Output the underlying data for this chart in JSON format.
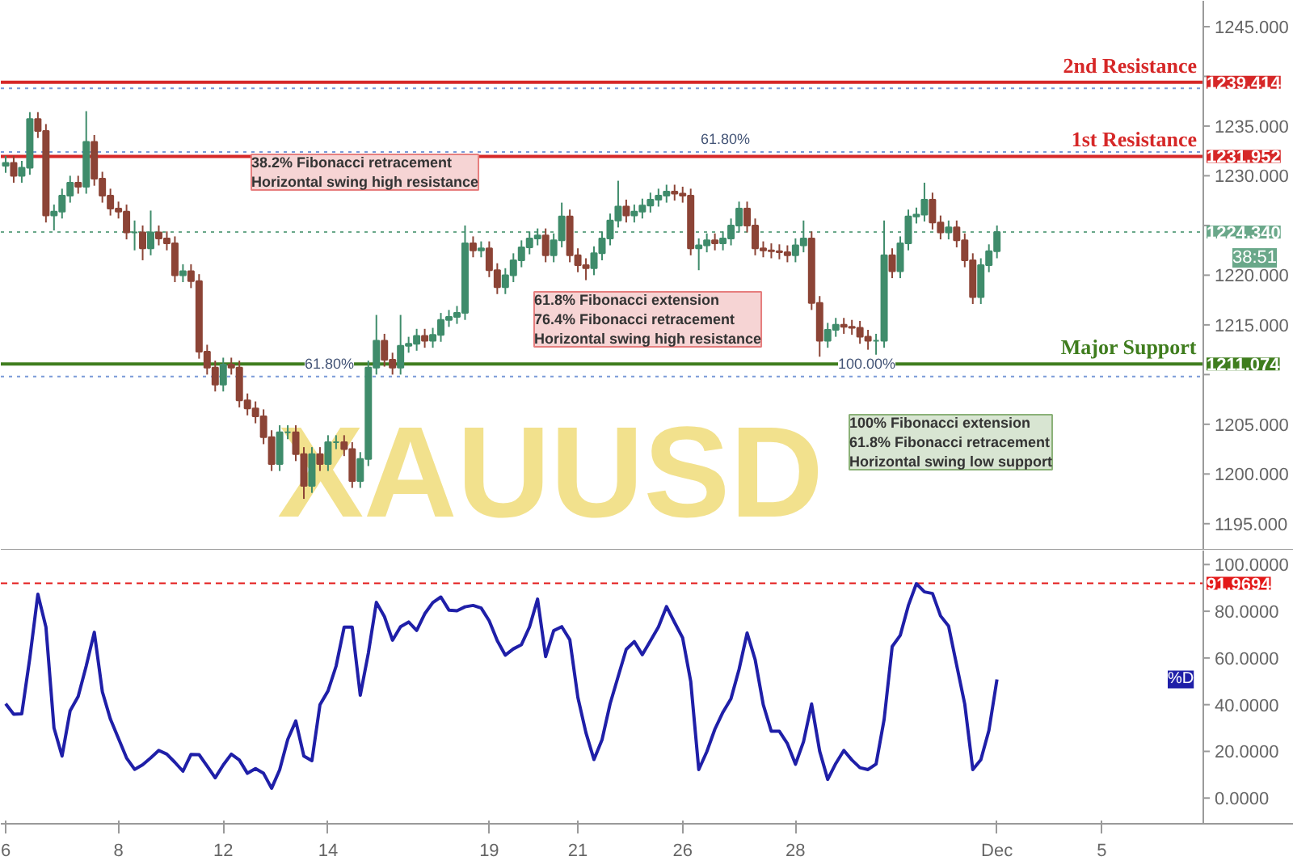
{
  "chart_data": [
    {
      "type": "candlestick",
      "ohlc": [
        [
          1231.0,
          1232.0,
          1230.3,
          1231.3
        ],
        [
          1231.3,
          1232.0,
          1229.3,
          1230.0
        ],
        [
          1230.0,
          1231.5,
          1229.3,
          1230.8
        ],
        [
          1230.8,
          1236.4,
          1230.1,
          1235.7
        ],
        [
          1235.7,
          1236.4,
          1233.8,
          1234.5
        ],
        [
          1234.5,
          1235.2,
          1225.3,
          1226.0
        ],
        [
          1226.0,
          1227.1,
          1224.5,
          1226.4
        ],
        [
          1226.4,
          1228.7,
          1225.7,
          1228.0
        ],
        [
          1228.0,
          1230.0,
          1227.3,
          1229.3
        ],
        [
          1229.3,
          1230.0,
          1228.2,
          1228.9
        ],
        [
          1228.9,
          1236.5,
          1228.2,
          1233.4
        ],
        [
          1233.4,
          1234.1,
          1229.0,
          1229.7
        ],
        [
          1229.7,
          1230.4,
          1227.3,
          1228.0
        ],
        [
          1228.0,
          1228.7,
          1226.0,
          1226.7
        ],
        [
          1226.7,
          1227.4,
          1225.7,
          1226.4
        ],
        [
          1226.4,
          1227.1,
          1223.6,
          1224.3
        ],
        [
          1224.3,
          1225.5,
          1222.5,
          1224.3
        ],
        [
          1224.3,
          1225.0,
          1221.5,
          1222.7
        ],
        [
          1222.7,
          1226.5,
          1222.0,
          1224.3
        ],
        [
          1224.3,
          1225.0,
          1223.0,
          1223.7
        ],
        [
          1223.7,
          1224.4,
          1222.5,
          1223.2
        ],
        [
          1223.2,
          1223.9,
          1219.3,
          1220.0
        ],
        [
          1220.0,
          1221.1,
          1219.3,
          1220.4
        ],
        [
          1220.4,
          1221.1,
          1218.7,
          1219.4
        ],
        [
          1219.4,
          1220.1,
          1211.6,
          1212.3
        ],
        [
          1212.3,
          1213.0,
          1210.0,
          1210.7
        ],
        [
          1210.7,
          1211.4,
          1208.3,
          1209.0
        ],
        [
          1209.0,
          1211.7,
          1208.3,
          1211.0
        ],
        [
          1211.0,
          1211.7,
          1210.0,
          1210.7
        ],
        [
          1210.7,
          1211.4,
          1206.7,
          1207.4
        ],
        [
          1207.4,
          1208.1,
          1205.9,
          1206.6
        ],
        [
          1206.6,
          1207.3,
          1205.1,
          1205.8
        ],
        [
          1205.8,
          1206.5,
          1203.0,
          1203.7
        ],
        [
          1203.7,
          1204.4,
          1200.3,
          1201.0
        ],
        [
          1201.0,
          1204.9,
          1200.3,
          1204.2
        ],
        [
          1204.2,
          1204.9,
          1203.5,
          1204.2
        ],
        [
          1204.2,
          1204.9,
          1201.3,
          1202.0
        ],
        [
          1202.0,
          1202.7,
          1197.5,
          1198.8
        ],
        [
          1198.8,
          1202.7,
          1198.1,
          1202.0
        ],
        [
          1202.0,
          1202.7,
          1200.3,
          1201.0
        ],
        [
          1201.0,
          1203.9,
          1200.3,
          1203.2
        ],
        [
          1203.2,
          1203.9,
          1202.5,
          1203.2
        ],
        [
          1203.2,
          1203.9,
          1201.8,
          1202.5
        ],
        [
          1202.5,
          1203.2,
          1198.6,
          1199.3
        ],
        [
          1199.3,
          1202.2,
          1198.6,
          1201.5
        ],
        [
          1201.5,
          1211.4,
          1200.8,
          1210.7
        ],
        [
          1210.7,
          1216.0,
          1210.0,
          1213.4
        ],
        [
          1213.4,
          1214.1,
          1210.8,
          1211.5
        ],
        [
          1211.5,
          1212.2,
          1210.0,
          1210.7
        ],
        [
          1210.7,
          1216.0,
          1210.0,
          1212.9
        ],
        [
          1212.9,
          1213.8,
          1212.2,
          1213.1
        ],
        [
          1213.1,
          1214.6,
          1212.4,
          1213.9
        ],
        [
          1213.9,
          1214.6,
          1212.7,
          1213.4
        ],
        [
          1213.4,
          1214.7,
          1212.7,
          1214.0
        ],
        [
          1214.0,
          1216.2,
          1213.3,
          1215.5
        ],
        [
          1215.5,
          1216.5,
          1214.8,
          1215.8
        ],
        [
          1215.8,
          1216.9,
          1215.1,
          1216.2
        ],
        [
          1216.2,
          1225.0,
          1215.5,
          1223.2
        ],
        [
          1223.2,
          1223.9,
          1221.8,
          1222.5
        ],
        [
          1222.5,
          1223.4,
          1221.8,
          1222.7
        ],
        [
          1222.7,
          1223.4,
          1219.8,
          1220.5
        ],
        [
          1220.5,
          1221.2,
          1218.1,
          1218.8
        ],
        [
          1218.8,
          1220.7,
          1218.1,
          1220.0
        ],
        [
          1220.0,
          1222.2,
          1219.3,
          1221.5
        ],
        [
          1221.5,
          1223.5,
          1220.8,
          1222.8
        ],
        [
          1222.8,
          1224.4,
          1222.1,
          1223.7
        ],
        [
          1223.7,
          1224.7,
          1223.0,
          1224.0
        ],
        [
          1224.0,
          1224.7,
          1221.3,
          1222.0
        ],
        [
          1222.0,
          1224.2,
          1221.3,
          1223.5
        ],
        [
          1223.5,
          1227.3,
          1222.8,
          1225.9
        ],
        [
          1225.9,
          1226.6,
          1221.3,
          1222.0
        ],
        [
          1222.0,
          1222.7,
          1220.3,
          1221.0
        ],
        [
          1221.0,
          1221.7,
          1219.5,
          1220.7
        ],
        [
          1220.7,
          1222.9,
          1220.0,
          1222.2
        ],
        [
          1222.2,
          1224.4,
          1221.5,
          1223.7
        ],
        [
          1223.7,
          1226.2,
          1223.0,
          1225.5
        ],
        [
          1225.5,
          1229.5,
          1224.8,
          1226.9
        ],
        [
          1226.9,
          1227.6,
          1225.3,
          1226.0
        ],
        [
          1226.0,
          1227.1,
          1225.3,
          1226.4
        ],
        [
          1226.4,
          1227.7,
          1225.7,
          1227.0
        ],
        [
          1227.0,
          1228.3,
          1226.3,
          1227.6
        ],
        [
          1227.6,
          1228.7,
          1226.9,
          1228.0
        ],
        [
          1228.0,
          1229.1,
          1227.3,
          1228.4
        ],
        [
          1228.4,
          1229.1,
          1227.5,
          1228.2
        ],
        [
          1228.2,
          1228.9,
          1227.3,
          1228.0
        ],
        [
          1228.0,
          1228.7,
          1222.0,
          1222.7
        ],
        [
          1222.7,
          1223.7,
          1220.5,
          1223.0
        ],
        [
          1223.0,
          1224.2,
          1222.3,
          1223.5
        ],
        [
          1223.5,
          1224.2,
          1222.5,
          1223.2
        ],
        [
          1223.2,
          1224.4,
          1222.5,
          1223.7
        ],
        [
          1223.7,
          1225.7,
          1223.0,
          1225.0
        ],
        [
          1225.0,
          1227.4,
          1224.3,
          1226.7
        ],
        [
          1226.7,
          1227.4,
          1224.3,
          1225.0
        ],
        [
          1225.0,
          1225.7,
          1222.0,
          1222.7
        ],
        [
          1222.7,
          1223.4,
          1221.8,
          1222.5
        ],
        [
          1222.5,
          1223.2,
          1221.7,
          1222.4
        ],
        [
          1222.4,
          1223.1,
          1221.6,
          1222.3
        ],
        [
          1222.3,
          1223.0,
          1221.3,
          1222.0
        ],
        [
          1222.0,
          1223.7,
          1221.3,
          1223.0
        ],
        [
          1223.0,
          1225.5,
          1222.3,
          1223.7
        ],
        [
          1223.7,
          1224.4,
          1216.5,
          1217.2
        ],
        [
          1217.2,
          1217.9,
          1211.8,
          1213.4
        ],
        [
          1213.4,
          1215.2,
          1212.7,
          1214.5
        ],
        [
          1214.5,
          1215.7,
          1213.8,
          1215.0
        ],
        [
          1215.0,
          1215.7,
          1214.1,
          1214.8
        ],
        [
          1214.8,
          1215.5,
          1214.0,
          1214.7
        ],
        [
          1214.7,
          1215.4,
          1213.1,
          1213.8
        ],
        [
          1213.8,
          1214.5,
          1212.5,
          1213.4
        ],
        [
          1213.4,
          1214.1,
          1212.0,
          1213.4
        ],
        [
          1213.4,
          1225.5,
          1212.7,
          1222.0
        ],
        [
          1222.0,
          1222.7,
          1219.7,
          1220.4
        ],
        [
          1220.4,
          1223.9,
          1219.7,
          1223.2
        ],
        [
          1223.2,
          1226.6,
          1222.5,
          1225.9
        ],
        [
          1225.9,
          1226.8,
          1225.2,
          1226.1
        ],
        [
          1226.1,
          1229.3,
          1225.4,
          1227.6
        ],
        [
          1227.6,
          1228.3,
          1224.6,
          1225.3
        ],
        [
          1225.3,
          1226.0,
          1223.6,
          1224.3
        ],
        [
          1224.3,
          1225.5,
          1223.6,
          1224.8
        ],
        [
          1224.8,
          1225.5,
          1222.8,
          1223.5
        ],
        [
          1223.5,
          1224.2,
          1220.8,
          1221.5
        ],
        [
          1221.5,
          1222.2,
          1217.1,
          1217.8
        ],
        [
          1217.8,
          1221.7,
          1217.1,
          1221.0
        ],
        [
          1221.0,
          1223.1,
          1220.3,
          1222.4
        ],
        [
          1222.4,
          1225.0,
          1221.7,
          1224.34
        ],
        null,
        null,
        null,
        null,
        null,
        null,
        null,
        null,
        null,
        null,
        null,
        null,
        null,
        null,
        null,
        null,
        null,
        null,
        null,
        null,
        null,
        null,
        null,
        null,
        null
      ],
      "colors": [
        "#3f8c6b",
        "#8c4436",
        "#3f8c6b",
        "#3f8c6b",
        "#8c4436",
        "#8c4436",
        "#3f8c6b",
        "#3f8c6b",
        "#3f8c6b",
        "#8c4436",
        "#3f8c6b",
        "#8c4436",
        "#8c4436",
        "#8c4436",
        "#8c4436",
        "#8c4436",
        "#3f8c6b",
        "#8c4436",
        "#3f8c6b",
        "#8c4436",
        "#8c4436",
        "#8c4436",
        "#3f8c6b",
        "#8c4436",
        "#8c4436",
        "#8c4436",
        "#8c4436",
        "#3f8c6b",
        "#8c4436",
        "#8c4436",
        "#8c4436",
        "#8c4436",
        "#8c4436",
        "#8c4436",
        "#3f8c6b",
        "#3f8c6b",
        "#8c4436",
        "#8c4436",
        "#3f8c6b",
        "#8c4436",
        "#3f8c6b",
        "#3f8c6b",
        "#8c4436",
        "#8c4436",
        "#3f8c6b",
        "#3f8c6b",
        "#3f8c6b",
        "#8c4436",
        "#8c4436",
        "#3f8c6b",
        "#3f8c6b",
        "#3f8c6b",
        "#8c4436",
        "#3f8c6b",
        "#3f8c6b",
        "#3f8c6b",
        "#3f8c6b",
        "#3f8c6b",
        "#8c4436",
        "#3f8c6b",
        "#8c4436",
        "#8c4436",
        "#3f8c6b",
        "#3f8c6b",
        "#3f8c6b",
        "#3f8c6b",
        "#3f8c6b",
        "#8c4436",
        "#3f8c6b",
        "#3f8c6b",
        "#8c4436",
        "#8c4436",
        "#8c4436",
        "#3f8c6b",
        "#3f8c6b",
        "#3f8c6b",
        "#3f8c6b",
        "#8c4436",
        "#3f8c6b",
        "#3f8c6b",
        "#3f8c6b",
        "#3f8c6b",
        "#3f8c6b",
        "#8c4436",
        "#8c4436",
        "#8c4436",
        "#3f8c6b",
        "#3f8c6b",
        "#8c4436",
        "#3f8c6b",
        "#3f8c6b",
        "#3f8c6b",
        "#8c4436",
        "#8c4436",
        "#8c4436",
        "#8c4436",
        "#8c4436",
        "#8c4436",
        "#3f8c6b",
        "#3f8c6b",
        "#8c4436",
        "#8c4436",
        "#3f8c6b",
        "#3f8c6b",
        "#8c4436",
        "#8c4436",
        "#8c4436",
        "#8c4436",
        "#3f8c6b",
        "#3f8c6b",
        "#8c4436",
        "#3f8c6b",
        "#3f8c6b",
        "#3f8c6b",
        "#3f8c6b",
        "#8c4436",
        "#8c4436",
        "#3f8c6b",
        "#8c4436",
        "#8c4436",
        "#8c4436",
        "#3f8c6b",
        "#3f8c6b",
        "#3f8c6b",
        null,
        null,
        null,
        null,
        null,
        null,
        null,
        null,
        null,
        null,
        null,
        null,
        null,
        null,
        null,
        null,
        null,
        null,
        null,
        null,
        null,
        null,
        null,
        null,
        null
      ],
      "ylim": [
        1192.3,
        1247.6
      ],
      "yticks": [
        {
          "value": 1195,
          "label": "1195.000"
        },
        {
          "value": 1200,
          "label": "1200.000"
        },
        {
          "value": 1205,
          "label": "1205.000"
        },
        {
          "value": 1210,
          "label": null
        },
        {
          "value": 1215,
          "label": "1215.000"
        },
        {
          "value": 1220,
          "label": "1220.000"
        },
        {
          "value": 1225,
          "label": null
        },
        {
          "value": 1230,
          "label": "1230.000"
        },
        {
          "value": 1235,
          "label": "1235.000"
        },
        {
          "value": 1240,
          "label": null
        },
        {
          "value": 1245,
          "label": "1245.000"
        }
      ],
      "tick_labels": "y",
      "ref_lines": [
        {
          "axis": "y",
          "value": 1239.414,
          "label": "1239.414",
          "color": "#d62828",
          "line_style": "solid"
        },
        {
          "axis": "y",
          "value": 1238.8,
          "color": "#7a9ad8",
          "line_style": "dotted"
        },
        {
          "axis": "y",
          "value": 1232.4,
          "color": "#7a9ad8",
          "line_style": "dotted"
        },
        {
          "axis": "y",
          "value": 1231.952,
          "label": "1231.952",
          "color": "#d62828",
          "line_style": "solid"
        },
        {
          "axis": "y",
          "value": 1224.34,
          "label": "1224.340",
          "color": "#6aa88a",
          "line_style": "dotted"
        },
        {
          "axis": "y",
          "value": 1211.074,
          "label": "1211.074",
          "color": "#3f7d1e",
          "line_style": "solid"
        },
        {
          "axis": "y",
          "value": 1209.8,
          "color": "#7a9ad8",
          "line_style": "dotted"
        }
      ],
      "annotations": [
        "XAUUSD",
        "38:51",
        "38.2% Fibonacci retracement\nHorizontal swing high resistance",
        "61.8% Fibonacci extension\n76.4% Fibonacci retracement\nHorizontal swing high resistance",
        "100% Fibonacci extension\n61.8% Fibonacci retracement\nHorizontal swing low support",
        {
          "text": "2nd Resistance",
          "y": 1239.414
        },
        {
          "text": "1st Resistance",
          "y": 1231.952
        },
        {
          "text": "Major Support",
          "y": 1211.074
        },
        {
          "text": "61.80%",
          "y": 1232.4
        },
        {
          "text": "61.80%",
          "y": 1209.8
        },
        {
          "text": "100.00%",
          "y": 1209.8
        }
      ]
    },
    {
      "type": "line",
      "categories": [
        "6",
        null,
        null,
        null,
        null,
        null,
        null,
        null,
        null,
        null,
        null,
        null,
        null,
        null,
        "8",
        null,
        null,
        null,
        null,
        null,
        null,
        null,
        null,
        null,
        null,
        null,
        null,
        "12",
        null,
        null,
        null,
        null,
        null,
        null,
        null,
        null,
        null,
        null,
        null,
        null,
        "14",
        null,
        null,
        null,
        null,
        null,
        null,
        null,
        null,
        null,
        null,
        null,
        null,
        null,
        null,
        null,
        null,
        null,
        null,
        null,
        "19",
        null,
        null,
        null,
        null,
        null,
        null,
        null,
        null,
        null,
        null,
        "21",
        null,
        null,
        null,
        null,
        null,
        null,
        null,
        null,
        null,
        null,
        null,
        null,
        "26",
        null,
        null,
        null,
        null,
        null,
        null,
        null,
        null,
        null,
        null,
        null,
        null,
        null,
        "28",
        null,
        null,
        null,
        null,
        null,
        null,
        null,
        null,
        null,
        null,
        null,
        null,
        null,
        null,
        null,
        null,
        null,
        null,
        null,
        null,
        null,
        null,
        null,
        null,
        "Dec",
        null,
        null,
        null,
        null,
        null,
        null,
        null,
        null,
        null,
        null,
        null,
        null,
        "5",
        null,
        null,
        null,
        null,
        null,
        null,
        null,
        null,
        null,
        null,
        null,
        null
      ],
      "series": [
        {
          "name": "%D",
          "color": "#1f1fa8",
          "values": [
            40.4,
            35.9,
            36.1,
            60,
            87.3,
            73.2,
            30,
            18,
            37.4,
            43.5,
            56.6,
            71,
            45.5,
            33.8,
            25.5,
            17.2,
            12.3,
            14.3,
            17.2,
            20.4,
            18.8,
            15.3,
            11.5,
            18.7,
            18.6,
            13.7,
            8.7,
            14.2,
            18.8,
            16.3,
            10.6,
            12.6,
            10.6,
            4.2,
            12.1,
            25.1,
            33,
            18,
            16,
            40,
            45.9,
            56.5,
            73.2,
            73.2,
            44,
            62,
            83.8,
            77.7,
            67.6,
            73.4,
            75.4,
            71.8,
            78.9,
            83.7,
            86.1,
            80.5,
            80.2,
            81.9,
            82.5,
            81.4,
            75.9,
            67.4,
            61.2,
            63.9,
            65.7,
            73.3,
            85.2,
            60.6,
            71.7,
            73.4,
            67.8,
            43.1,
            28,
            16.5,
            25,
            40.4,
            52.1,
            63.7,
            67,
            61.4,
            67.3,
            73.3,
            82,
            75.2,
            68.6,
            50,
            12.2,
            19.9,
            29.5,
            36.8,
            42.6,
            55.1,
            70.7,
            59.2,
            40,
            28.6,
            28.6,
            23.3,
            14.5,
            24.2,
            40.3,
            20.1,
            8,
            14.8,
            20.4,
            16.3,
            13,
            12.2,
            14.6,
            33.7,
            64.9,
            69.7,
            82.4,
            91.8,
            88.3,
            87.6,
            78,
            73.6,
            56.9,
            40.3,
            12.2,
            16.4,
            29,
            50.8,
            null,
            null,
            null,
            null,
            null,
            null,
            null,
            null,
            null,
            null,
            null,
            null,
            null,
            null,
            null,
            null,
            null,
            null,
            null,
            null,
            null,
            null,
            null,
            null,
            null
          ]
        }
      ],
      "ylim": [
        -11,
        106
      ],
      "yticks": [
        {
          "value": 0,
          "label": "0.0000"
        },
        {
          "value": 20,
          "label": "20.0000"
        },
        {
          "value": 40,
          "label": "40.0000"
        },
        {
          "value": 60,
          "label": "60.0000"
        },
        {
          "value": 80,
          "label": "80.0000"
        },
        {
          "value": 100,
          "label": "100.0000"
        }
      ],
      "ref_lines": [
        {
          "axis": "y",
          "value": 91.9694,
          "label": "91.9694",
          "color": "#e31919",
          "line_style": "dashed"
        }
      ]
    }
  ]
}
